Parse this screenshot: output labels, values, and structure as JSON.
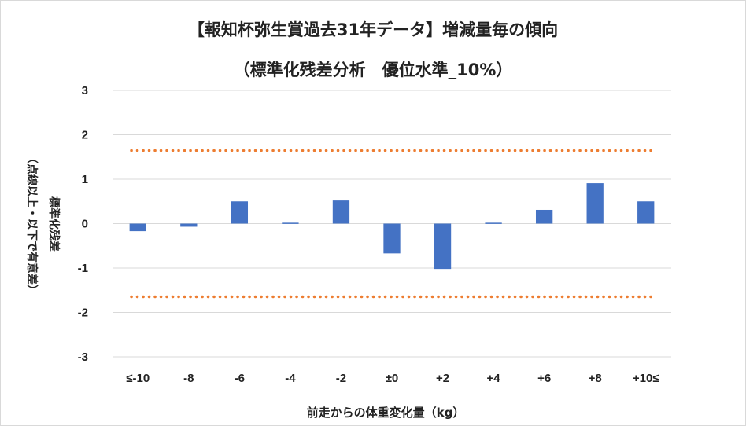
{
  "title": {
    "line1": "【報知杯弥生賞過去31年データ】増減量毎の傾向",
    "line2": "（標準化残差分析　優位水準_10%）"
  },
  "chart_data": {
    "type": "bar",
    "categories": [
      "≤-10",
      "-8",
      "-6",
      "-4",
      "-2",
      "±0",
      "+2",
      "+4",
      "+6",
      "+8",
      "+10≤"
    ],
    "values": [
      -0.17,
      -0.07,
      0.5,
      0.02,
      0.52,
      -0.67,
      -1.02,
      0.02,
      0.31,
      0.91,
      0.5
    ],
    "ylim": [
      -3,
      3
    ],
    "yticks": [
      "3",
      "2",
      "1",
      "0",
      "-1",
      "-2",
      "-3"
    ],
    "ytick_values": [
      3,
      2,
      1,
      0,
      -1,
      -2,
      -3
    ],
    "reference_lines": [
      1.645,
      -1.645
    ],
    "ylabel": "標準化残差",
    "ylabel_note": "（点線以上・以下で有意差）",
    "xlabel": "前走からの体重変化量（kg）",
    "grid": true,
    "colors": {
      "bar": "#4472c4",
      "reference": "#ed7d31",
      "grid": "#d9d9d9"
    }
  }
}
